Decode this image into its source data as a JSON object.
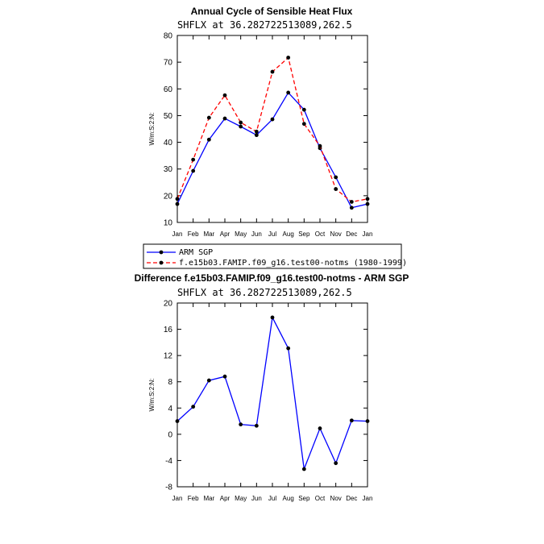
{
  "colors": {
    "obs": "#0000ff",
    "model": "#ff0000",
    "diff": "#0000ff",
    "marker": "#000000",
    "axis": "#000000"
  },
  "chart_data": [
    {
      "type": "line",
      "title": "Annual Cycle of Sensible Heat Flux",
      "subtitle": "SHFLX at 36.282722513089,262.5",
      "xlabel": "",
      "ylabel": "W/m:S:2:N:",
      "categories": [
        "Jan",
        "Feb",
        "Mar",
        "Apr",
        "May",
        "Jun",
        "Jul",
        "Aug",
        "Sep",
        "Oct",
        "Nov",
        "Dec",
        "Jan"
      ],
      "yticks": [
        10,
        20,
        30,
        40,
        50,
        60,
        70,
        80
      ],
      "ylim": [
        10,
        80
      ],
      "series": [
        {
          "name": "ARM SGP",
          "color": "#0000ff",
          "dash": "solid",
          "values": [
            16.9,
            29.3,
            41.0,
            48.9,
            45.9,
            42.7,
            48.6,
            58.6,
            52.2,
            37.8,
            26.9,
            15.5,
            16.9
          ]
        },
        {
          "name": "f.e15b03.FAMIP.f09_g16.test00-notms (1980-1999)",
          "color": "#ff0000",
          "dash": "dashed",
          "values": [
            18.8,
            33.5,
            49.2,
            57.6,
            47.4,
            44.0,
            66.4,
            71.7,
            46.9,
            38.6,
            22.5,
            17.7,
            18.8
          ]
        }
      ],
      "legend": "below"
    },
    {
      "type": "line",
      "title": "Difference f.e15b03.FAMIP.f09_g16.test00-notms - ARM SGP",
      "subtitle": "SHFLX at 36.282722513089,262.5",
      "xlabel": "",
      "ylabel": "W/m:S:2:N:",
      "categories": [
        "Jan",
        "Feb",
        "Mar",
        "Apr",
        "May",
        "Jun",
        "Jul",
        "Aug",
        "Sep",
        "Oct",
        "Nov",
        "Dec",
        "Jan"
      ],
      "yticks": [
        -8,
        -4,
        0,
        4,
        8,
        12,
        16,
        20
      ],
      "ylim": [
        -8,
        20
      ],
      "series": [
        {
          "color": "#0000ff",
          "dash": "solid",
          "values": [
            2.0,
            4.2,
            8.2,
            8.8,
            1.5,
            1.3,
            17.8,
            13.1,
            -5.3,
            0.9,
            -4.4,
            2.1,
            2.0
          ]
        }
      ]
    }
  ]
}
